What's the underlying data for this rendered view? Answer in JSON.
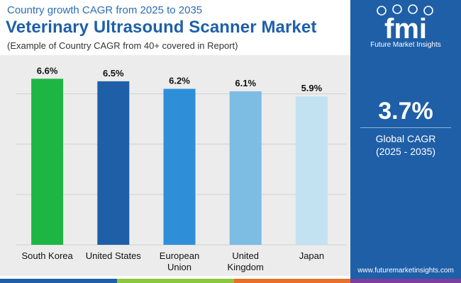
{
  "header": {
    "subtitle": "Country growth CAGR from 2025 to 2035",
    "title": "Veterinary Ultrasound Scanner Market",
    "note": "(Example of Country CAGR from 40+ covered in Report)"
  },
  "chart_data": {
    "type": "bar",
    "categories": [
      "South Korea",
      "United States",
      "European Union",
      "United Kingdom",
      "Japan"
    ],
    "category_label_lines": [
      [
        "South Korea"
      ],
      [
        "United States"
      ],
      [
        "European",
        "Union"
      ],
      [
        "United",
        "Kingdom"
      ],
      [
        "Japan"
      ]
    ],
    "values": [
      6.6,
      6.5,
      6.2,
      6.1,
      5.9
    ],
    "data_labels": [
      "6.6%",
      "6.5%",
      "6.2%",
      "6.1%",
      "5.9%"
    ],
    "colors": [
      "#1db644",
      "#1f5fa8",
      "#2e8fd8",
      "#7dbce3",
      "#c2e2f2"
    ],
    "ylim": [
      0,
      7.2
    ],
    "grid": true,
    "value_axis_visible": false,
    "legend": "none",
    "title": "",
    "xlabel": "",
    "ylabel": ""
  },
  "sidebar": {
    "logo_text": "fmi",
    "brand": "Future Market Insights",
    "stat_value": "3.7%",
    "stat_label": "Global CAGR",
    "stat_period": "(2025 - 2035)",
    "website": "www.futuremarketinsights.com"
  },
  "colors": {
    "primary_blue": "#1f5fa8",
    "accent_green": "#1db644",
    "chart_background": "#ececec",
    "footer_stripes": [
      "#1f5fa8",
      "#8dc63f",
      "#e8702a",
      "#7b3fa0"
    ]
  }
}
